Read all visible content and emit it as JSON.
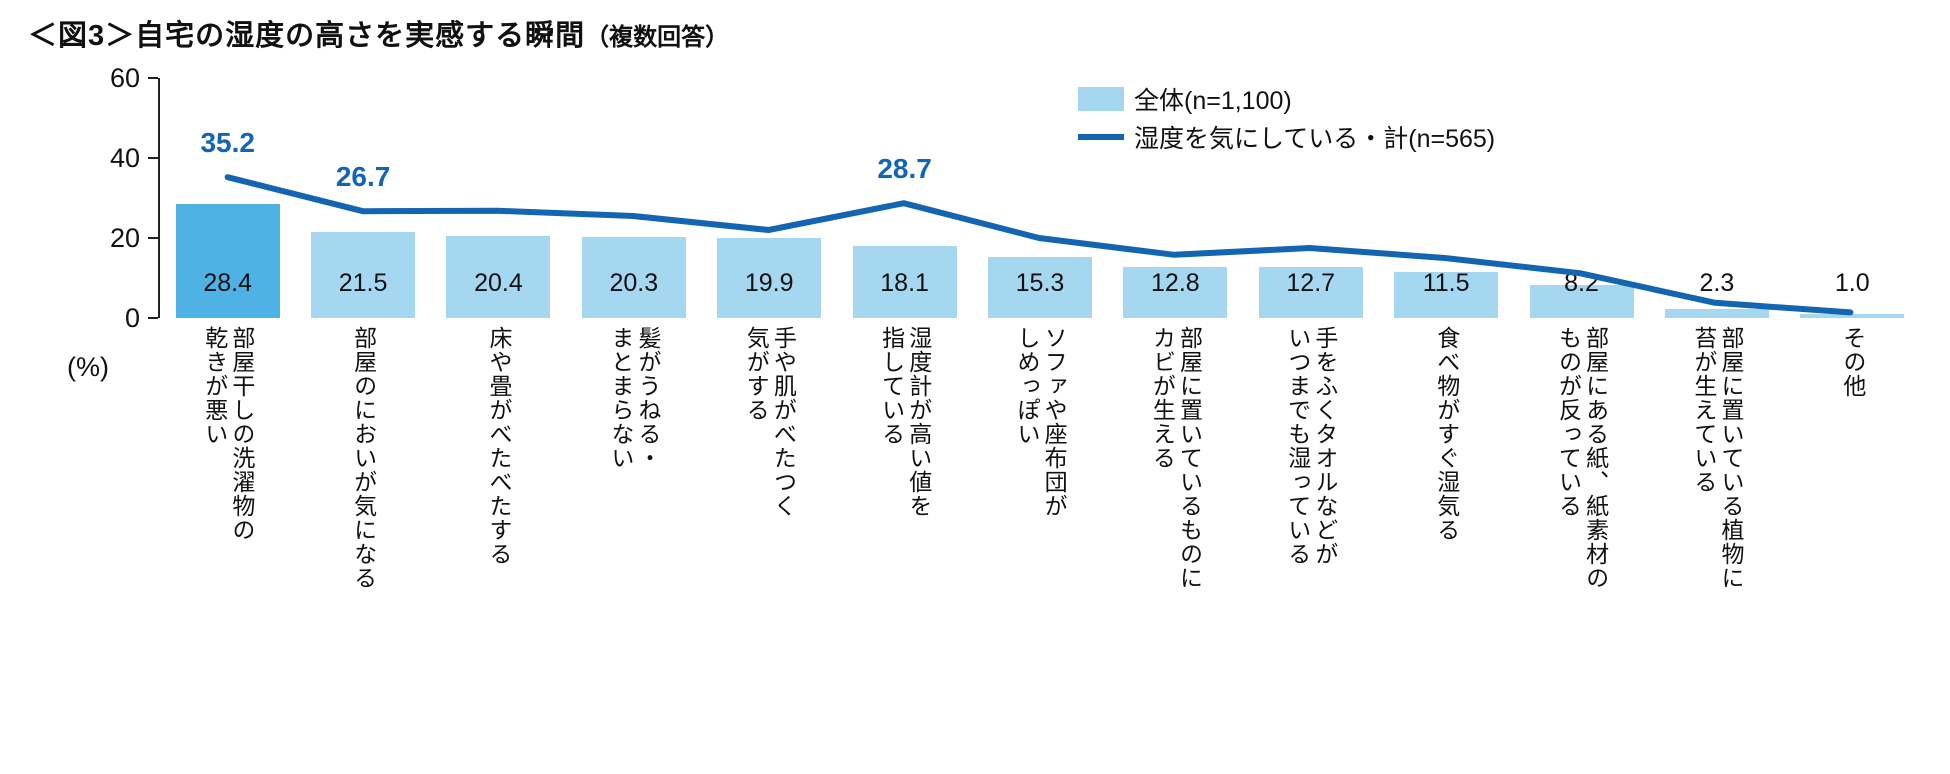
{
  "title": {
    "main": "＜図3＞自宅の湿度の高さを実感する瞬間",
    "note": "（複数回答）"
  },
  "legend": [
    {
      "type": "bar",
      "label": "全体(n=1,100)"
    },
    {
      "type": "line",
      "label": "湿度を気にしている・計(n=565)"
    }
  ],
  "axis": {
    "unit": "(%)",
    "ticks": [
      0,
      20,
      40,
      60
    ],
    "max": 60
  },
  "colors": {
    "bar": "#a6d7f0",
    "bar_highlight": "#4fb2e5",
    "line": "#1365b2",
    "axis": "#222222",
    "value_text": "#111111"
  },
  "chart_data": {
    "type": "bar",
    "title": "＜図3＞自宅の湿度の高さを実感する瞬間（複数回答）",
    "ylabel": "(%)",
    "ylim": [
      0,
      60
    ],
    "grid": false,
    "legend_position": "top-right",
    "categories": [
      "部屋干しの洗濯物の\n乾きが悪い",
      "部屋のにおいが気になる",
      "床や畳がべたべたする",
      "髪がうねる・\nまとまらない",
      "手や肌がべたつく\n気がする",
      "湿度計が高い値を\n指している",
      "ソファや座布団が\nしめっぽい",
      "部屋に置いているものに\nカビが生える",
      "手をふくタオルなどが\nいつまでも湿っている",
      "食べ物がすぐ湿気る",
      "部屋にある紙、紙素材の\nものが反っている",
      "部屋に置いている植物に\n苔が生えている",
      "その他"
    ],
    "series": [
      {
        "name": "全体(n=1,100)",
        "type": "bar",
        "values": [
          28.4,
          21.5,
          20.4,
          20.3,
          19.9,
          18.1,
          15.3,
          12.8,
          12.7,
          11.5,
          8.2,
          2.3,
          1.0
        ]
      },
      {
        "name": "湿度を気にしている・計(n=565)",
        "type": "line",
        "values": [
          35.2,
          26.7,
          26.8,
          25.5,
          22.0,
          28.7,
          20.0,
          15.8,
          17.5,
          15.0,
          11.2,
          3.8,
          1.4
        ],
        "labeled_points": {
          "0": "35.2",
          "1": "26.7",
          "5": "28.7"
        }
      }
    ]
  }
}
